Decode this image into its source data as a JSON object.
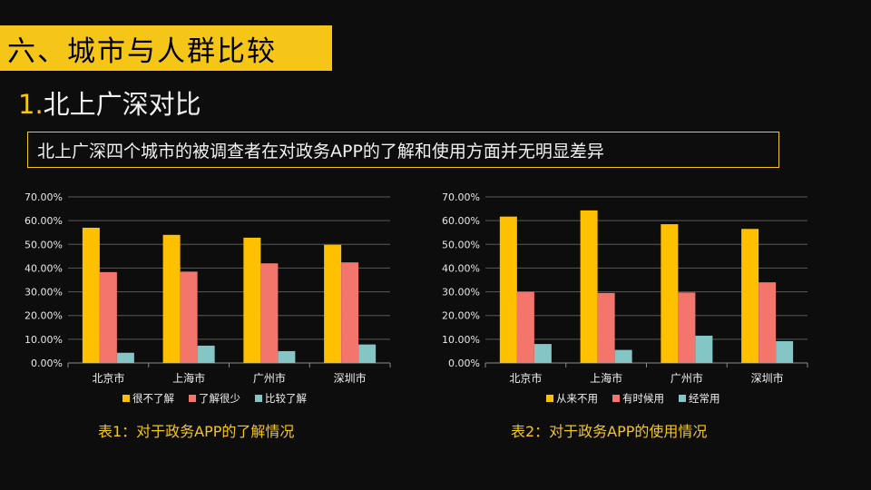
{
  "slide": {
    "section_title": "六、城市与人群比较",
    "subtitle_num": "1.",
    "subtitle_text": "北上广深对比",
    "statement": "北上广深四个城市的被调查者在对政务APP的了解和使用方面并无明显差异"
  },
  "chart_data": [
    {
      "type": "bar",
      "categories": [
        "北京市",
        "上海市",
        "广州市",
        "深圳市"
      ],
      "series": [
        {
          "name": "很不了解",
          "color": "#ffc000",
          "values": [
            57.0,
            54.0,
            52.8,
            49.8
          ]
        },
        {
          "name": "了解很少",
          "color": "#f4756b",
          "values": [
            38.3,
            38.5,
            42.0,
            42.4
          ]
        },
        {
          "name": "比较了解",
          "color": "#84c5c5",
          "values": [
            4.3,
            7.3,
            5.0,
            7.8
          ]
        }
      ],
      "yticks": [
        "70.00%",
        "60.00%",
        "50.00%",
        "40.00%",
        "30.00%",
        "20.00%",
        "10.00%",
        "0.00%"
      ],
      "ylim": [
        0,
        70
      ],
      "grid": true,
      "legend_position": "bottom",
      "caption": "表1：对于政务APP的了解情况"
    },
    {
      "type": "bar",
      "categories": [
        "北京市",
        "上海市",
        "广州市",
        "深圳市"
      ],
      "series": [
        {
          "name": "从来不用",
          "color": "#ffc000",
          "values": [
            61.7,
            64.3,
            58.5,
            56.5
          ]
        },
        {
          "name": "有时候用",
          "color": "#f4756b",
          "values": [
            30.0,
            29.5,
            29.7,
            34.0
          ]
        },
        {
          "name": "经常用",
          "color": "#84c5c5",
          "values": [
            8.0,
            5.5,
            11.5,
            9.2
          ]
        }
      ],
      "yticks": [
        "70.00%",
        "60.00%",
        "50.00%",
        "40.00%",
        "30.00%",
        "20.00%",
        "10.00%",
        "0.00%"
      ],
      "ylim": [
        0,
        70
      ],
      "grid": true,
      "legend_position": "bottom",
      "caption": "表2：对于政务APP的使用情况"
    }
  ]
}
